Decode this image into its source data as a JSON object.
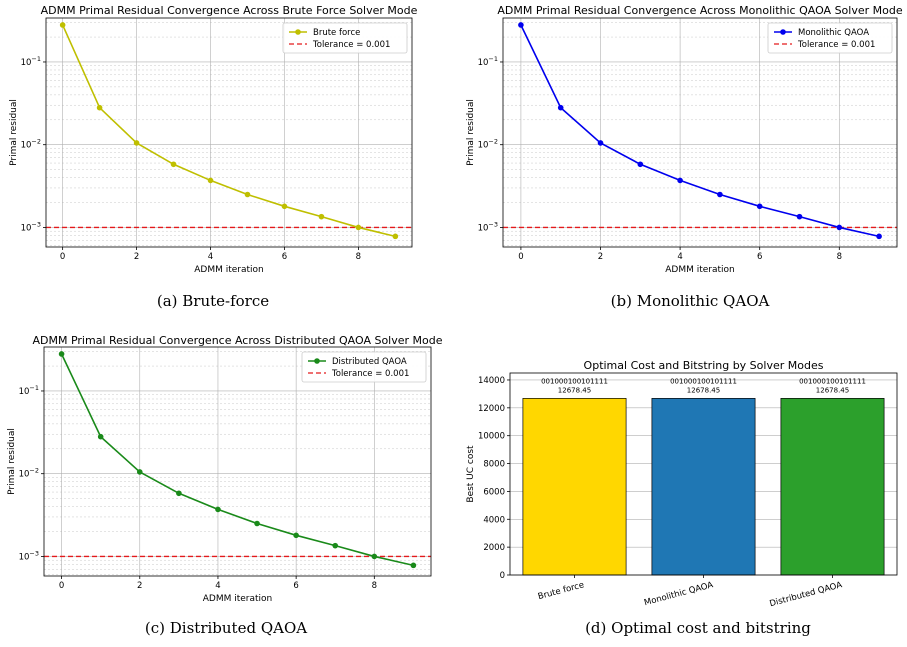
{
  "chart_data": [
    {
      "type": "line",
      "title": "ADMM Primal Residual Convergence Across Brute Force Solver Mode",
      "xlabel": "ADMM iteration",
      "ylabel": "Primal residual",
      "yscale": "log",
      "x": [
        0,
        1,
        2,
        3,
        4,
        5,
        6,
        7,
        8,
        9
      ],
      "xticks": [
        "0",
        "2",
        "4",
        "6",
        "8"
      ],
      "xlim": [
        -0.45,
        9.45
      ],
      "ylim": [
        0.00058,
        0.34
      ],
      "grid": true,
      "legend_position": "top-right",
      "series": [
        {
          "name": "Brute force",
          "color": "#bfbf00",
          "values": [
            0.28,
            0.028,
            0.0105,
            0.0058,
            0.0037,
            0.0025,
            0.0018,
            0.00135,
            0.001,
            0.00078
          ]
        }
      ],
      "threshold": {
        "name": "Tolerance = 0.001",
        "value": 0.001,
        "color": "#e41a1c"
      },
      "caption": "(a) Brute-force"
    },
    {
      "type": "line",
      "title": "ADMM Primal Residual Convergence Across Monolithic QAOA Solver Mode",
      "xlabel": "ADMM iteration",
      "ylabel": "Primal residual",
      "yscale": "log",
      "x": [
        0,
        1,
        2,
        3,
        4,
        5,
        6,
        7,
        8,
        9
      ],
      "xticks": [
        "0",
        "2",
        "4",
        "6",
        "8"
      ],
      "xlim": [
        -0.45,
        9.45
      ],
      "ylim": [
        0.00058,
        0.34
      ],
      "grid": true,
      "legend_position": "top-right",
      "series": [
        {
          "name": "Monolithic QAOA",
          "color": "#0000ee",
          "values": [
            0.28,
            0.028,
            0.0105,
            0.0058,
            0.0037,
            0.0025,
            0.0018,
            0.00135,
            0.001,
            0.00078
          ]
        }
      ],
      "threshold": {
        "name": "Tolerance = 0.001",
        "value": 0.001,
        "color": "#e41a1c"
      },
      "caption": "(b) Monolithic QAOA"
    },
    {
      "type": "line",
      "title": "ADMM Primal Residual Convergence Across Distributed QAOA Solver Mode",
      "xlabel": "ADMM iteration",
      "ylabel": "Primal residual",
      "yscale": "log",
      "x": [
        0,
        1,
        2,
        3,
        4,
        5,
        6,
        7,
        8,
        9
      ],
      "xticks": [
        "0",
        "2",
        "4",
        "6",
        "8"
      ],
      "xlim": [
        -0.45,
        9.45
      ],
      "ylim": [
        0.00058,
        0.34
      ],
      "grid": true,
      "legend_position": "top-right",
      "series": [
        {
          "name": "Distributed QAOA",
          "color": "#1a8a1a",
          "values": [
            0.28,
            0.028,
            0.0105,
            0.0058,
            0.0037,
            0.0025,
            0.0018,
            0.00135,
            0.001,
            0.00078
          ]
        }
      ],
      "threshold": {
        "name": "Tolerance = 0.001",
        "value": 0.001,
        "color": "#e41a1c"
      },
      "caption": "(c) Distributed QAOA"
    },
    {
      "type": "bar",
      "title": "Optimal Cost and Bitstring by Solver Modes",
      "xlabel": "",
      "ylabel": "Best UC cost",
      "categories": [
        "Brute force",
        "Monolithic QAOA",
        "Distributed QAOA"
      ],
      "values": [
        12678.45,
        12678.45,
        12678.45
      ],
      "bitstrings": [
        "001000100101111",
        "001000100101111",
        "001000100101111"
      ],
      "value_labels": [
        "12678.45",
        "12678.45",
        "12678.45"
      ],
      "colors": [
        "#ffd700",
        "#1f77b4",
        "#2ca02c"
      ],
      "ylim": [
        0,
        14500
      ],
      "yticks": [
        0,
        2000,
        4000,
        6000,
        8000,
        10000,
        12000,
        14000
      ],
      "grid": true,
      "caption": "(d) Optimal cost and bitstring"
    }
  ]
}
